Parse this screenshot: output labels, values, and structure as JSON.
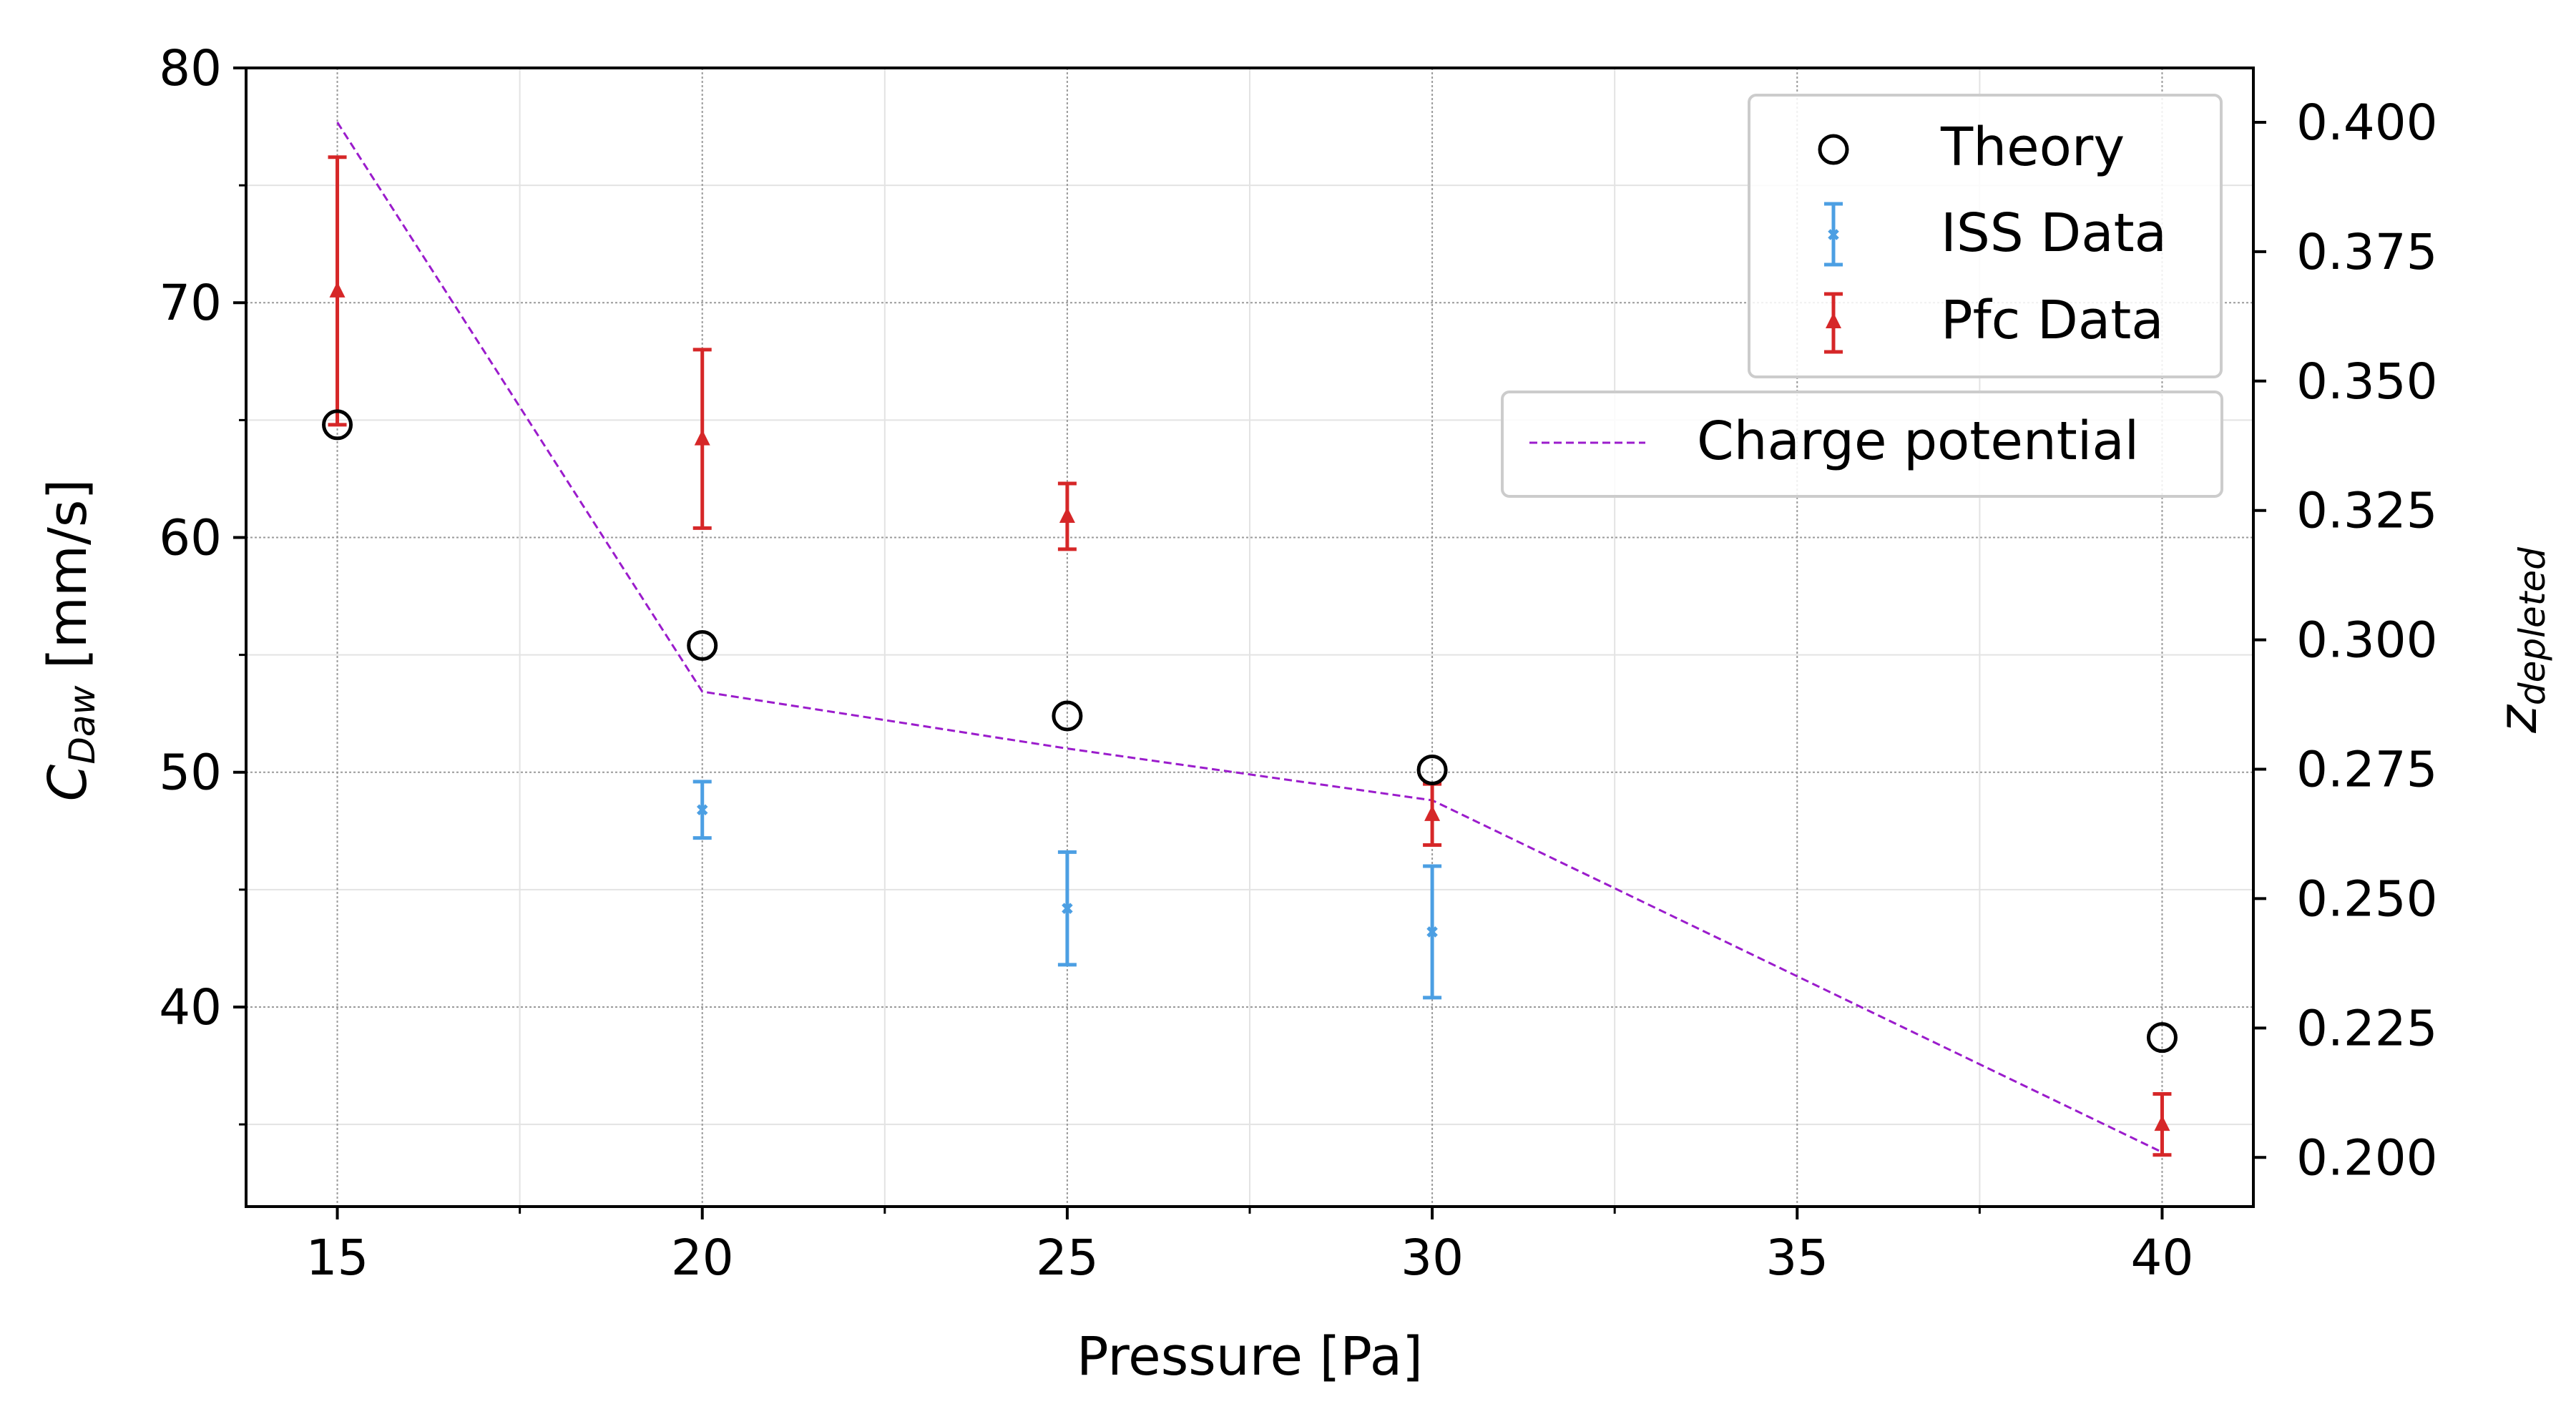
{
  "chart_data": {
    "type": "scatter",
    "xlabel": "Pressure [Pa]",
    "ylabel": {
      "base": "C",
      "sub": "Daw",
      "rest": " [mm/s]"
    },
    "y2label": {
      "base": "z",
      "sub": "depleted"
    },
    "xlim": [
      13.75,
      41.25
    ],
    "ylim": [
      31.5,
      80
    ],
    "y2lim": [
      0.1905,
      0.4105
    ],
    "xticks": [
      "15",
      "20",
      "25",
      "30",
      "35",
      "40"
    ],
    "yticks": [
      "40",
      "50",
      "60",
      "70",
      "80"
    ],
    "y2ticks": [
      "0.200",
      "0.225",
      "0.250",
      "0.275",
      "0.300",
      "0.325",
      "0.350",
      "0.375",
      "0.400"
    ],
    "grid": true,
    "series": [
      {
        "name": "Theory",
        "marker": "open-circle",
        "color": "#000000",
        "axis": "left",
        "x": [
          15,
          20,
          25,
          30,
          40
        ],
        "y": [
          64.8,
          55.4,
          52.4,
          50.1,
          38.7
        ]
      },
      {
        "name": "ISS Data",
        "marker": "small-x-errorbar",
        "color": "#4c9fe3",
        "axis": "left",
        "x": [
          20,
          25,
          30
        ],
        "y": [
          48.4,
          44.2,
          43.2
        ],
        "err": [
          1.2,
          2.4,
          2.8
        ]
      },
      {
        "name": "Pfc Data",
        "marker": "triangle-errorbar",
        "color": "#d62728",
        "axis": "left",
        "x": [
          15,
          20,
          25,
          30,
          40
        ],
        "y": [
          70.5,
          64.2,
          60.9,
          48.2,
          35.0
        ],
        "err": [
          5.7,
          3.8,
          1.4,
          1.3,
          1.3
        ]
      },
      {
        "name": "Charge potential",
        "marker": "dashed-line",
        "color": "#9b1ccc",
        "axis": "right",
        "x": [
          15,
          20,
          25,
          30,
          40
        ],
        "y": [
          0.4,
          0.29,
          0.279,
          0.269,
          0.201
        ]
      }
    ],
    "legend": "top-right"
  }
}
